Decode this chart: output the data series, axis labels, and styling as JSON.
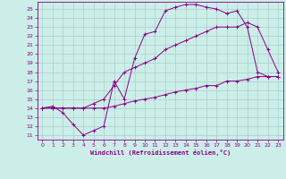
{
  "background_color": "#cceee8",
  "grid_color": "#aacccc",
  "line_color": "#880088",
  "xlabel": "Windchill (Refroidissement éolien,°C)",
  "xlim": [
    -0.5,
    23.5
  ],
  "ylim": [
    10.5,
    25.8
  ],
  "xticks": [
    0,
    1,
    2,
    3,
    4,
    5,
    6,
    7,
    8,
    9,
    10,
    11,
    12,
    13,
    14,
    15,
    16,
    17,
    18,
    19,
    20,
    21,
    22,
    23
  ],
  "yticks": [
    11,
    12,
    13,
    14,
    15,
    16,
    17,
    18,
    19,
    20,
    21,
    22,
    23,
    24,
    25
  ],
  "line1_x": [
    0,
    1,
    2,
    3,
    4,
    5,
    6,
    7,
    8,
    9,
    10,
    11,
    12,
    13,
    14,
    15,
    16,
    17,
    18,
    19,
    20,
    21,
    22,
    23
  ],
  "line1_y": [
    14.0,
    14.2,
    13.5,
    12.2,
    11.0,
    11.5,
    12.0,
    17.0,
    15.0,
    19.5,
    22.2,
    22.5,
    24.8,
    25.2,
    25.5,
    25.5,
    25.2,
    25.0,
    24.5,
    24.8,
    23.0,
    18.0,
    17.5,
    17.5
  ],
  "line2_x": [
    0,
    1,
    2,
    3,
    4,
    5,
    6,
    7,
    8,
    9,
    10,
    11,
    12,
    13,
    14,
    15,
    16,
    17,
    18,
    19,
    20,
    21,
    22,
    23
  ],
  "line2_y": [
    14.0,
    14.0,
    14.0,
    14.0,
    14.0,
    14.5,
    15.0,
    16.5,
    18.0,
    18.5,
    19.0,
    19.5,
    20.5,
    21.0,
    21.5,
    22.0,
    22.5,
    23.0,
    23.0,
    23.0,
    23.5,
    23.0,
    20.5,
    18.0
  ],
  "line3_x": [
    0,
    1,
    2,
    3,
    4,
    5,
    6,
    7,
    8,
    9,
    10,
    11,
    12,
    13,
    14,
    15,
    16,
    17,
    18,
    19,
    20,
    21,
    22,
    23
  ],
  "line3_y": [
    14.0,
    14.0,
    14.0,
    14.0,
    14.0,
    14.0,
    14.0,
    14.2,
    14.5,
    14.8,
    15.0,
    15.2,
    15.5,
    15.8,
    16.0,
    16.2,
    16.5,
    16.5,
    17.0,
    17.0,
    17.2,
    17.5,
    17.5,
    17.5
  ]
}
